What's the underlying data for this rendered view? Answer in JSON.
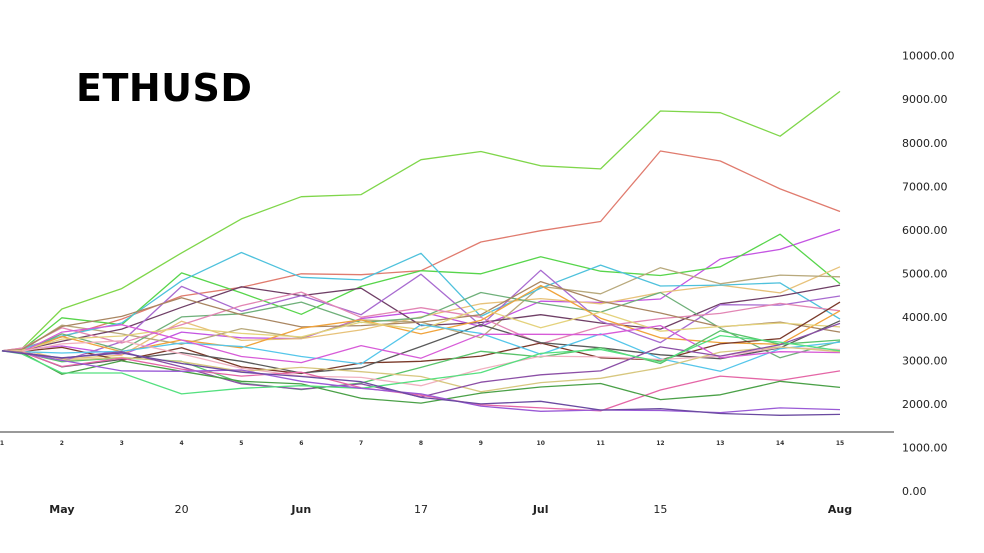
{
  "title": "ETHUSD",
  "chart_data": {
    "type": "line",
    "title": "ETHUSD",
    "xlabel": "",
    "ylabel": "",
    "ylim": [
      0,
      10000
    ],
    "y_axis_position": "right",
    "grid": false,
    "legend": "none",
    "y_ticks": [
      "10000.00",
      "9000.00",
      "8000.00",
      "7000.00",
      "6000.00",
      "5000.00",
      "4000.00",
      "3000.00",
      "2000.00",
      "1000.00",
      "0.00"
    ],
    "x_steps": [
      "1",
      "2",
      "3",
      "4",
      "5",
      "6",
      "7",
      "8",
      "9",
      "10",
      "11",
      "12",
      "13",
      "14",
      "15"
    ],
    "x_month_labels": [
      {
        "label": "May",
        "step": 2,
        "bold": true
      },
      {
        "label": "20",
        "step": 4,
        "bold": false
      },
      {
        "label": "Jun",
        "step": 6,
        "bold": true
      },
      {
        "label": "17",
        "step": 8,
        "bold": false
      },
      {
        "label": "Jul",
        "step": 10,
        "bold": true
      },
      {
        "label": "15",
        "step": 12,
        "bold": false
      },
      {
        "label": "Aug",
        "step": 15,
        "bold": true
      }
    ],
    "x": [
      1,
      1.33,
      2,
      3,
      4,
      5,
      6,
      7,
      8,
      9,
      10,
      11,
      12,
      13,
      14,
      15
    ],
    "series": [
      {
        "color": "#7fd64a",
        "values": [
          3220,
          3270,
          4180,
          4650,
          5470,
          6250,
          6760,
          6810,
          7610,
          7800,
          7470,
          7400,
          8730,
          8690,
          8150,
          9180
        ]
      },
      {
        "color": "#e07b6e",
        "values": [
          3220,
          3280,
          3540,
          3950,
          4480,
          4680,
          4990,
          4970,
          5060,
          5720,
          5980,
          6190,
          7810,
          7580,
          6940,
          6420
        ]
      },
      {
        "color": "#c455e2",
        "values": [
          3220,
          3260,
          3330,
          3130,
          3650,
          3520,
          3500,
          3960,
          4120,
          3780,
          4360,
          4330,
          4410,
          5330,
          5550,
          6010
        ]
      },
      {
        "color": "#57d54b",
        "values": [
          3220,
          3240,
          3980,
          3820,
          5010,
          4550,
          4060,
          4700,
          5060,
          4990,
          5380,
          5050,
          4950,
          5150,
          5900,
          4760
        ]
      },
      {
        "color": "#e7c27a",
        "values": [
          3220,
          3250,
          3030,
          3120,
          3900,
          3460,
          3500,
          3700,
          4000,
          4300,
          4420,
          4300,
          4560,
          4730,
          4550,
          5150
        ]
      },
      {
        "color": "#b8a97c",
        "values": [
          3220,
          3230,
          3810,
          3610,
          3370,
          3730,
          3520,
          3930,
          3880,
          3520,
          4700,
          4530,
          5130,
          4760,
          4960,
          4920
        ]
      },
      {
        "color": "#4ec1dc",
        "values": [
          3220,
          3260,
          3560,
          3860,
          4830,
          5480,
          4910,
          4850,
          5460,
          4010,
          4660,
          5190,
          4710,
          4730,
          4780,
          3950
        ]
      },
      {
        "color": "#6f3f66",
        "values": [
          3220,
          3240,
          3440,
          3720,
          4220,
          4690,
          4490,
          4660,
          3800,
          3870,
          4050,
          3860,
          3720,
          4300,
          4480,
          4730
        ]
      },
      {
        "color": "#a86bd0",
        "values": [
          3220,
          3210,
          2980,
          3430,
          4700,
          4130,
          4490,
          4050,
          4980,
          3800,
          5070,
          3900,
          3410,
          4280,
          4270,
          4480
        ]
      },
      {
        "color": "#6fb07a",
        "values": [
          3220,
          3200,
          3610,
          3240,
          4000,
          4070,
          4340,
          3870,
          3980,
          4560,
          4310,
          4110,
          4560,
          3740,
          3060,
          3440
        ]
      },
      {
        "color": "#e286b4",
        "values": [
          3220,
          3280,
          3750,
          3400,
          3820,
          4260,
          4570,
          3990,
          4210,
          3990,
          3380,
          3780,
          3960,
          4080,
          4310,
          4140
        ]
      },
      {
        "color": "#a98662",
        "values": [
          3220,
          3250,
          3780,
          4010,
          4440,
          4050,
          3770,
          3800,
          3880,
          4050,
          4810,
          4360,
          4090,
          3770,
          3880,
          3650
        ]
      },
      {
        "color": "#f0a33b",
        "values": [
          3220,
          3200,
          3550,
          3200,
          3470,
          3290,
          3740,
          3930,
          3610,
          3920,
          4720,
          3970,
          3520,
          3410,
          3370,
          4140
        ]
      },
      {
        "color": "#e4d27c",
        "values": [
          3220,
          3230,
          3490,
          3560,
          3750,
          3620,
          3540,
          3880,
          3710,
          4190,
          3750,
          4110,
          3670,
          3780,
          3860,
          3770
        ]
      },
      {
        "color": "#7a3a2a",
        "values": [
          3220,
          3210,
          3300,
          3000,
          3290,
          2850,
          2700,
          2940,
          2980,
          3100,
          3400,
          3060,
          3010,
          3380,
          3500,
          4340
        ]
      },
      {
        "color": "#5a5a5a",
        "values": [
          3220,
          3200,
          2850,
          3020,
          3180,
          2980,
          2710,
          2830,
          3320,
          3820,
          3410,
          3290,
          3130,
          3040,
          3290,
          3910
        ]
      },
      {
        "color": "#55c6ea",
        "values": [
          3220,
          3200,
          3170,
          3210,
          3400,
          3320,
          3090,
          2920,
          3820,
          3620,
          3140,
          3610,
          3040,
          2750,
          3270,
          3420
        ]
      },
      {
        "color": "#d75bd8",
        "values": [
          3220,
          3190,
          3650,
          3820,
          3470,
          3090,
          2950,
          3340,
          3050,
          3600,
          3600,
          3590,
          3800,
          3060,
          3200,
          3180
        ]
      },
      {
        "color": "#59c36a",
        "values": [
          3220,
          3180,
          2970,
          3060,
          2980,
          2480,
          2330,
          2480,
          2840,
          3210,
          3080,
          3290,
          2930,
          3680,
          3370,
          3470
        ]
      },
      {
        "color": "#f1b0c0",
        "values": [
          3220,
          3210,
          3380,
          3450,
          3150,
          2820,
          2640,
          2610,
          2420,
          2800,
          3100,
          3080,
          3020,
          3100,
          3300,
          3250
        ]
      },
      {
        "color": "#d7c77f",
        "values": [
          3220,
          3200,
          3000,
          3070,
          2970,
          2750,
          2840,
          2740,
          2630,
          2280,
          2490,
          2590,
          2830,
          3190,
          3310,
          3200
        ]
      },
      {
        "color": "#8b4fa6",
        "values": [
          3220,
          3180,
          3050,
          3200,
          2850,
          2460,
          2340,
          2460,
          2160,
          2500,
          2670,
          2760,
          3310,
          3100,
          3360,
          3850
        ]
      },
      {
        "color": "#e466a6",
        "values": [
          3220,
          3190,
          2860,
          3050,
          2800,
          2640,
          2730,
          2370,
          2200,
          1980,
          1910,
          1840,
          2320,
          2640,
          2540,
          2760
        ]
      },
      {
        "color": "#4aa047",
        "values": [
          3220,
          3180,
          2680,
          2990,
          2750,
          2520,
          2460,
          2130,
          2020,
          2250,
          2390,
          2470,
          2100,
          2210,
          2520,
          2380
        ]
      },
      {
        "color": "#54e07f",
        "values": [
          3220,
          3150,
          2710,
          2710,
          2230,
          2360,
          2420,
          2360,
          2540,
          2720,
          3160,
          3250,
          2970,
          3570,
          3420,
          3220
        ]
      },
      {
        "color": "#9a5ad6",
        "values": [
          3220,
          3170,
          3000,
          2760,
          2750,
          2780,
          2520,
          2360,
          2230,
          1950,
          1830,
          1860,
          1850,
          1800,
          1910,
          1870
        ]
      },
      {
        "color": "#6a4aa0",
        "values": [
          3220,
          3160,
          3060,
          3170,
          2930,
          2730,
          2630,
          2510,
          2150,
          2000,
          2060,
          1860,
          1890,
          1780,
          1740,
          1760
        ]
      }
    ]
  }
}
